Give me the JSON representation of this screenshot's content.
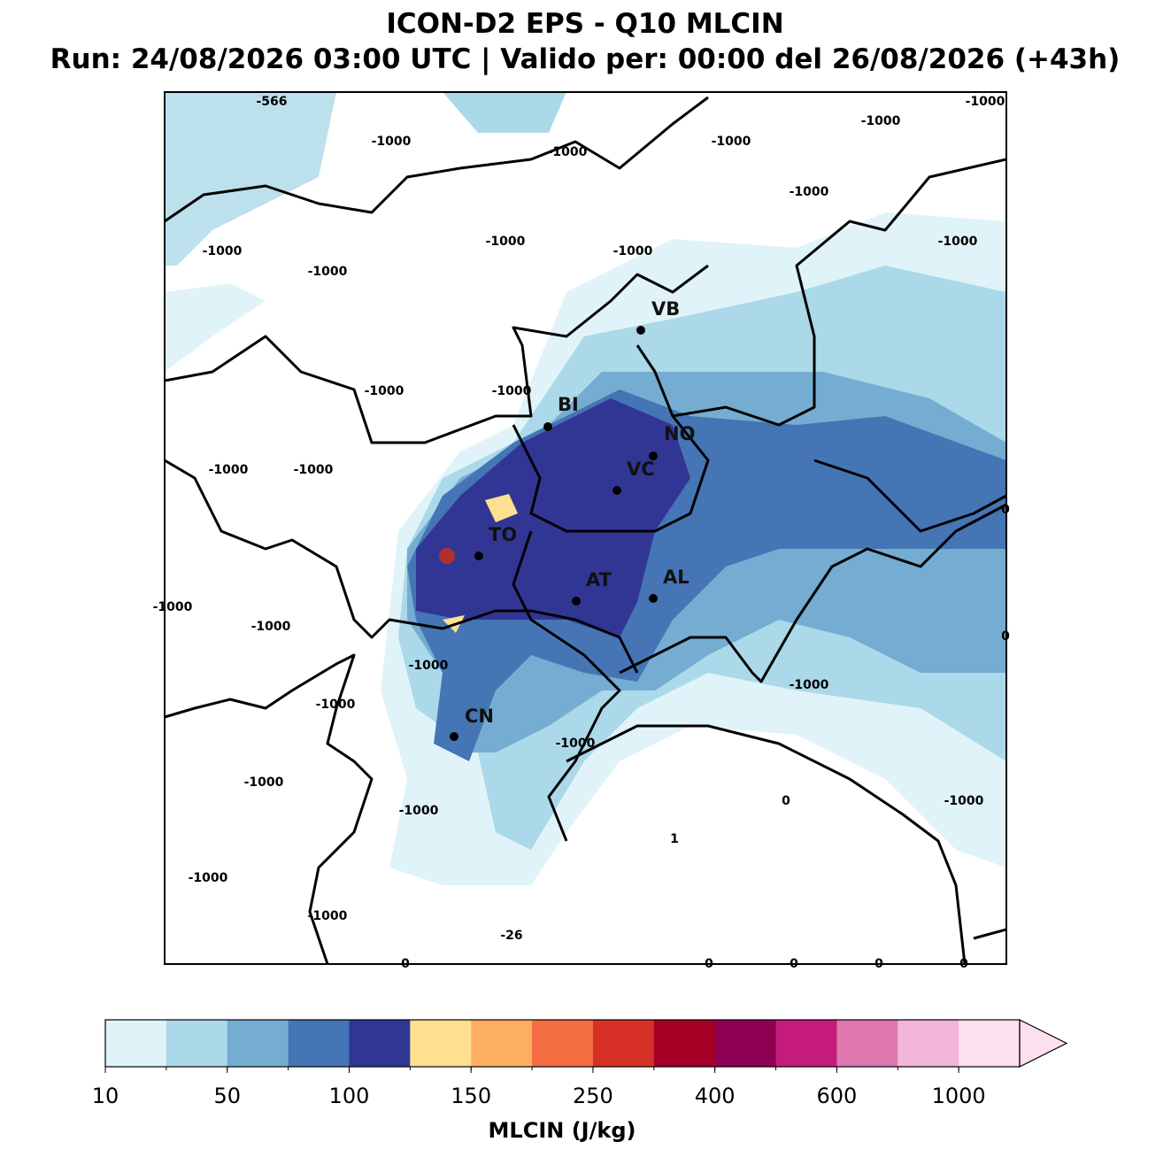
{
  "header": {
    "title": "ICON-D2 EPS - Q10 MLCIN",
    "subtitle": "Run: 24/08/2026 03:00 UTC | Valido per: 00:00 del 26/08/2026 (+43h)"
  },
  "map": {
    "field_labels": [
      -566,
      -1000,
      -1000,
      -1000,
      -1000,
      -1000,
      -1000,
      -1000,
      -1000,
      -1000,
      -1000,
      -1000,
      -1000,
      -1000,
      -1000,
      -1000,
      0,
      -1000,
      -1000,
      0,
      -1000,
      -1000,
      -1000,
      -1000,
      -1000,
      0,
      -1000,
      -1000,
      1,
      -1000,
      -1000,
      -26,
      0,
      0,
      0,
      0,
      0
    ],
    "cities": [
      "VB",
      "BI",
      "NO",
      "VC",
      "TO",
      "AT",
      "AL",
      "CN"
    ]
  },
  "colorbar": {
    "label": "MLCIN (J/kg)",
    "ticks": [
      10,
      50,
      100,
      150,
      250,
      400,
      600,
      1000
    ],
    "colors": [
      "#e0f3f8",
      "#abd9e9",
      "#74add1",
      "#4575b4",
      "#313695",
      "#fee090",
      "#fdae61",
      "#f46d43",
      "#d73027",
      "#a50026",
      "#8e0152",
      "#c51b7d",
      "#de77ae",
      "#f1b6da",
      "#fde0ef"
    ]
  }
}
